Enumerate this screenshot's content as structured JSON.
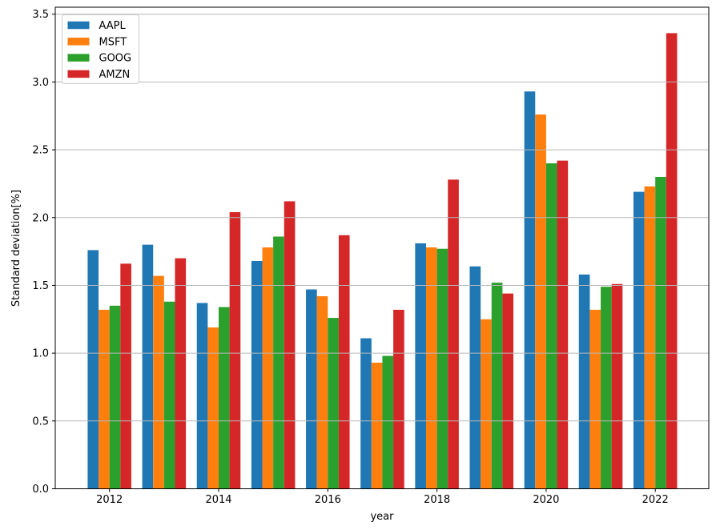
{
  "chart_data": {
    "type": "bar",
    "title": "",
    "xlabel": "year",
    "ylabel": "Standard deviation[%]",
    "categories": [
      2012,
      2013,
      2014,
      2015,
      2016,
      2017,
      2018,
      2019,
      2020,
      2021,
      2022
    ],
    "series": [
      {
        "name": "AAPL",
        "color": "#1f77b4",
        "values": [
          1.76,
          1.8,
          1.37,
          1.68,
          1.47,
          1.11,
          1.81,
          1.64,
          2.93,
          1.58,
          2.19
        ]
      },
      {
        "name": "MSFT",
        "color": "#ff7f0e",
        "values": [
          1.32,
          1.57,
          1.19,
          1.78,
          1.42,
          0.93,
          1.78,
          1.25,
          2.76,
          1.32,
          2.23
        ]
      },
      {
        "name": "GOOG",
        "color": "#2ca02c",
        "values": [
          1.35,
          1.38,
          1.34,
          1.86,
          1.26,
          0.98,
          1.77,
          1.52,
          2.4,
          1.49,
          2.3
        ]
      },
      {
        "name": "AMZN",
        "color": "#d62728",
        "values": [
          1.66,
          1.7,
          2.04,
          2.12,
          1.87,
          1.32,
          2.28,
          1.44,
          2.42,
          1.51,
          3.36
        ]
      }
    ],
    "ylim": [
      0.0,
      3.55
    ],
    "yticks": [
      0.0,
      0.5,
      1.0,
      1.5,
      2.0,
      2.5,
      3.0,
      3.5
    ],
    "ytick_labels": [
      "0.0",
      "0.5",
      "1.0",
      "1.5",
      "2.0",
      "2.5",
      "3.0",
      "3.5"
    ],
    "xticks": [
      2012,
      2014,
      2016,
      2018,
      2020,
      2022
    ],
    "xtick_labels": [
      "2012",
      "2014",
      "2016",
      "2018",
      "2020",
      "2022"
    ],
    "grid": "y",
    "grid_on": true,
    "grid_color": "#b8b8b8",
    "axis_color": "#000000",
    "background_color": "#ffffff",
    "bar_width_data_units": 0.2,
    "legend": {
      "location": "upper left",
      "border_color": "#cccccc",
      "entries": [
        "AAPL",
        "MSFT",
        "GOOG",
        "AMZN"
      ]
    }
  }
}
